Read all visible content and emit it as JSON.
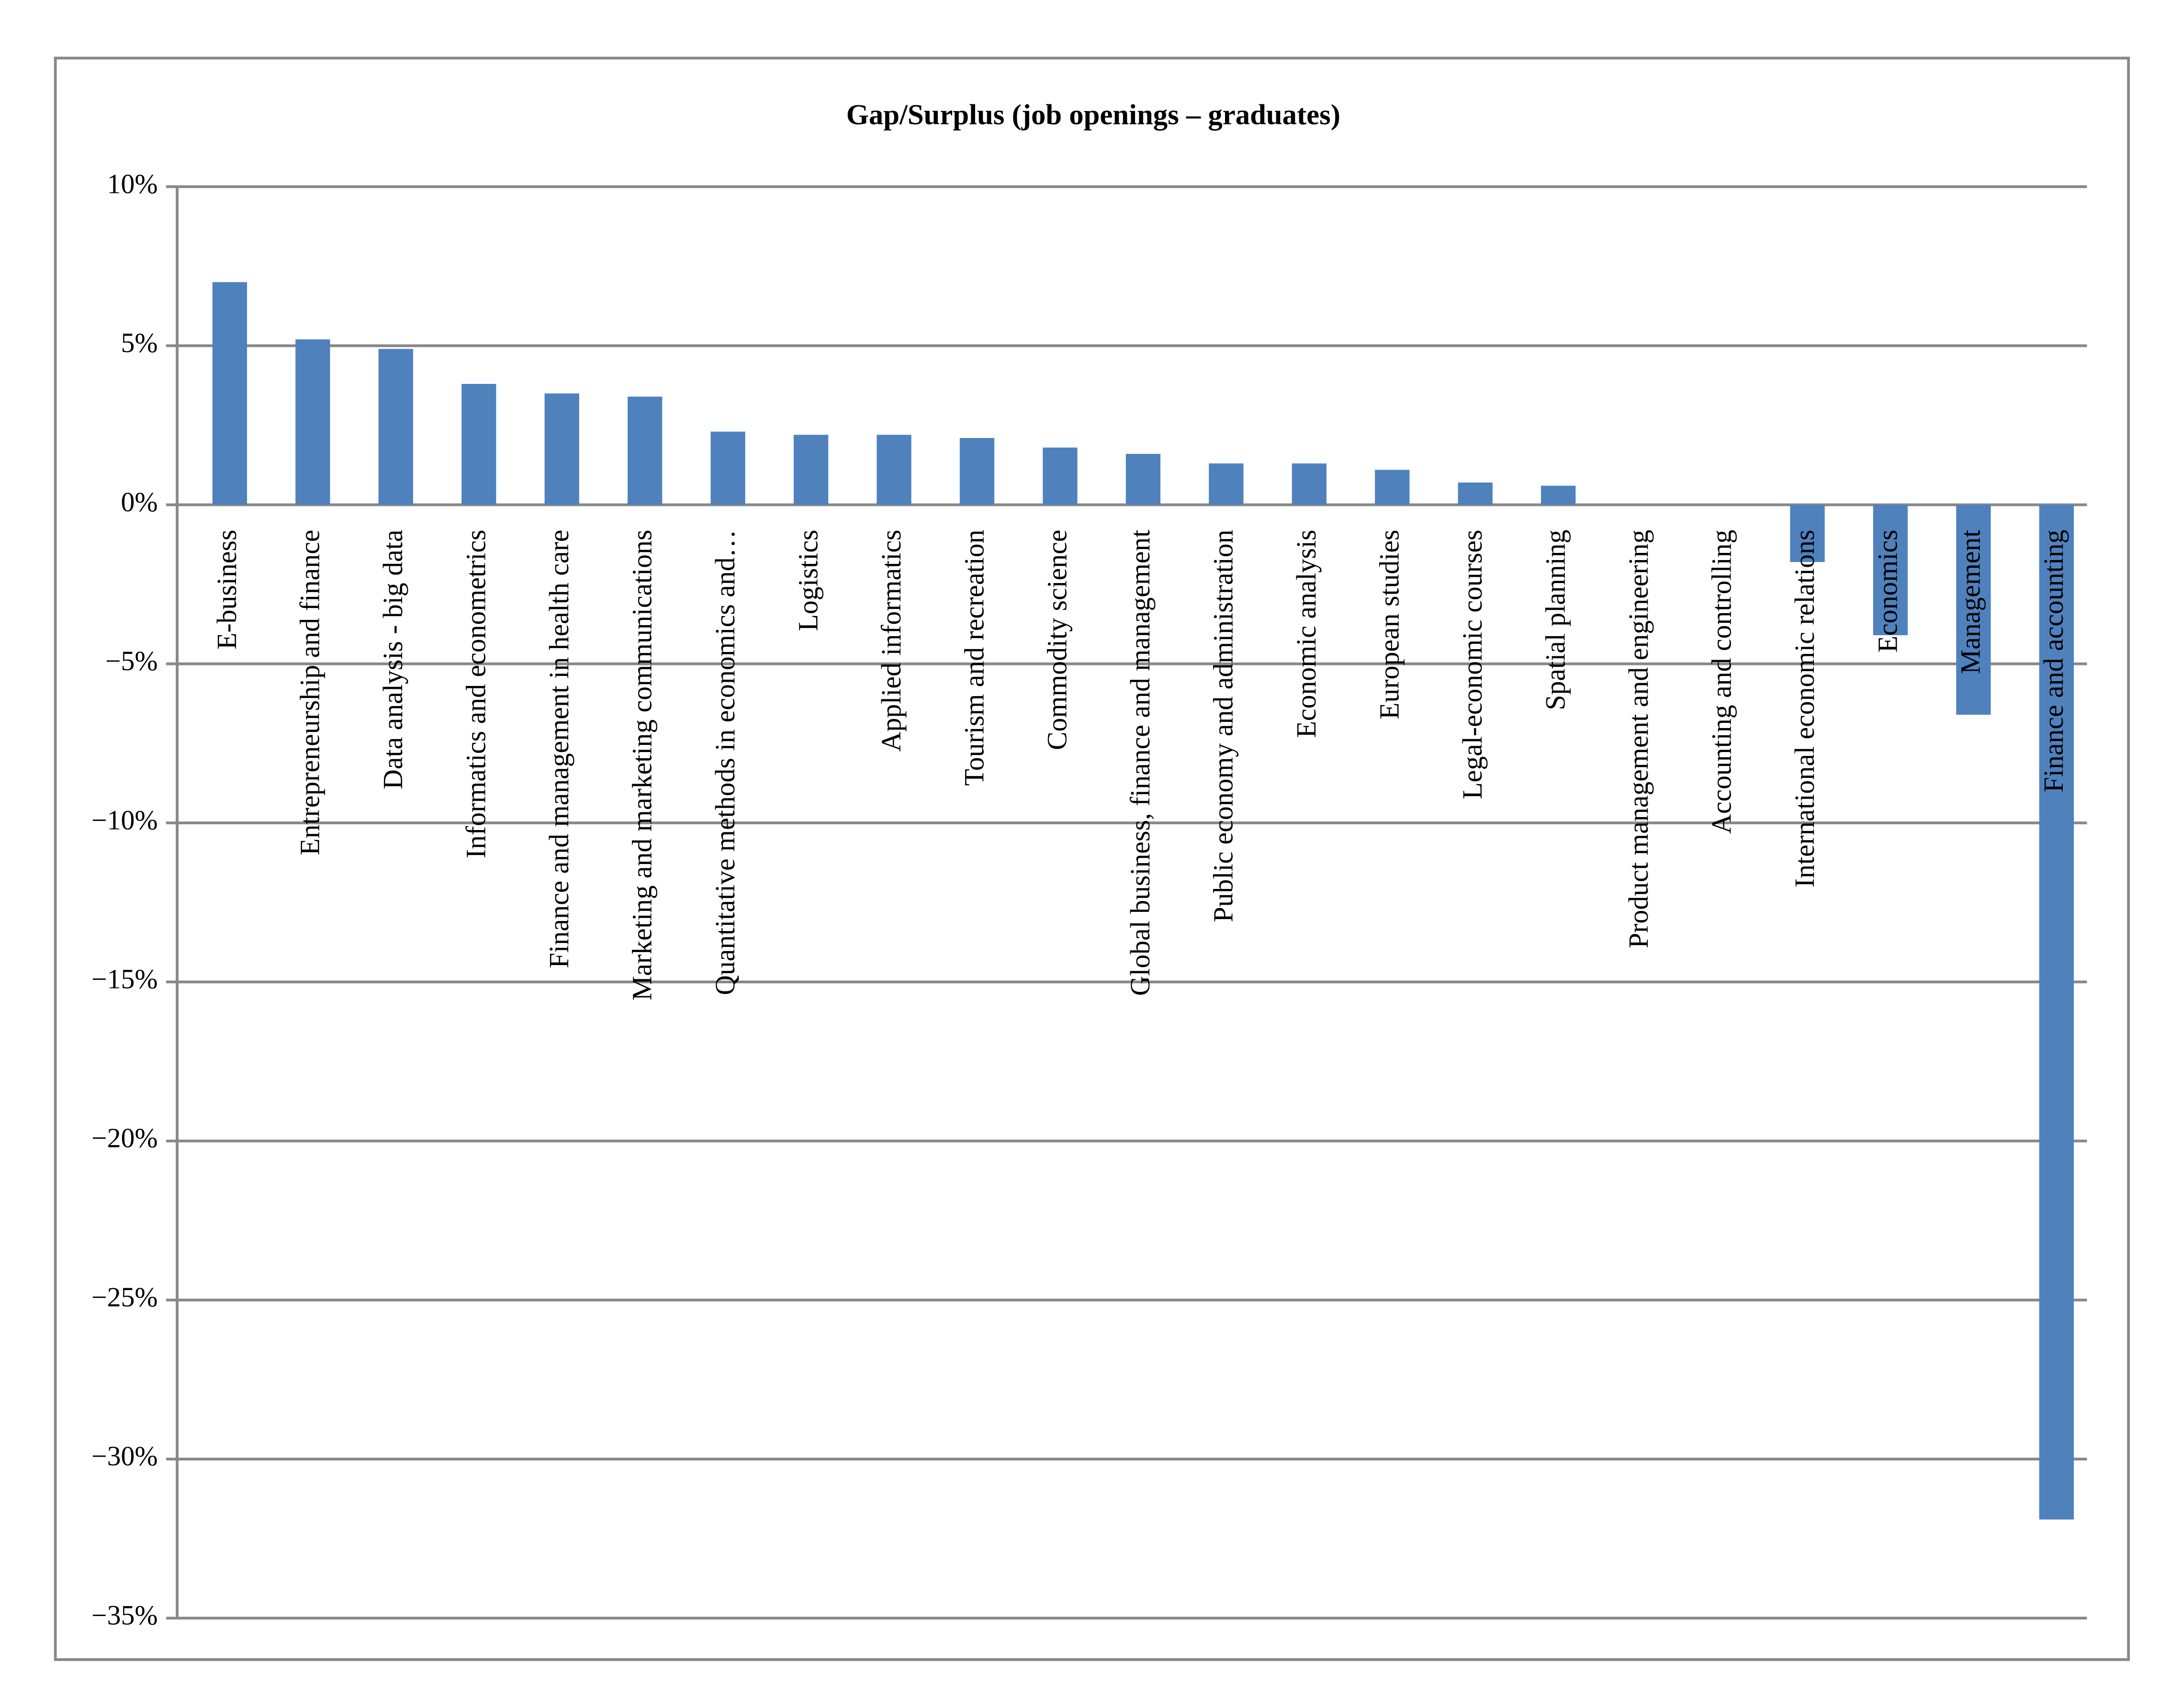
{
  "chart_data": {
    "type": "bar",
    "title": "Gap/Surplus (job openings – graduates)",
    "categories": [
      "E-business",
      "Entrepreneurship and finance",
      "Data analysis - big data",
      "Informatics and econometrics",
      "Finance and management in health care",
      "Marketing and marketing communications",
      "Quantitative methods in economics and…",
      "Logistics",
      "Applied informatics",
      "Tourism and recreation",
      "Commodity science",
      "Global business, finance and management",
      "Public economy and administration",
      "Economic analysis",
      "European studies",
      "Legal-economic courses",
      "Spatial planning",
      "Product management and engineering",
      "Accounting and controlling",
      "International economic relations",
      "Economics",
      "Management",
      "Finance and accounting"
    ],
    "values": [
      7.0,
      5.2,
      4.9,
      3.8,
      3.5,
      3.4,
      2.3,
      2.2,
      2.2,
      2.1,
      1.8,
      1.6,
      1.3,
      1.3,
      1.1,
      0.7,
      0.6,
      0,
      0,
      -1.8,
      -4.1,
      -6.6,
      -31.9
    ],
    "color": "#4f81bd",
    "ylim": [
      -35,
      10
    ],
    "yticks": [
      {
        "value": -35,
        "label": "−35%"
      },
      {
        "value": -30,
        "label": "−30%"
      },
      {
        "value": -25,
        "label": "−25%"
      },
      {
        "value": -20,
        "label": "−20%"
      },
      {
        "value": -15,
        "label": "−15%"
      },
      {
        "value": -10,
        "label": "−10%"
      },
      {
        "value": -5,
        "label": "−5%"
      },
      {
        "value": 0,
        "label": "0%"
      },
      {
        "value": 5,
        "label": "5%"
      },
      {
        "value": 10,
        "label": "10%"
      }
    ],
    "grid": true
  }
}
